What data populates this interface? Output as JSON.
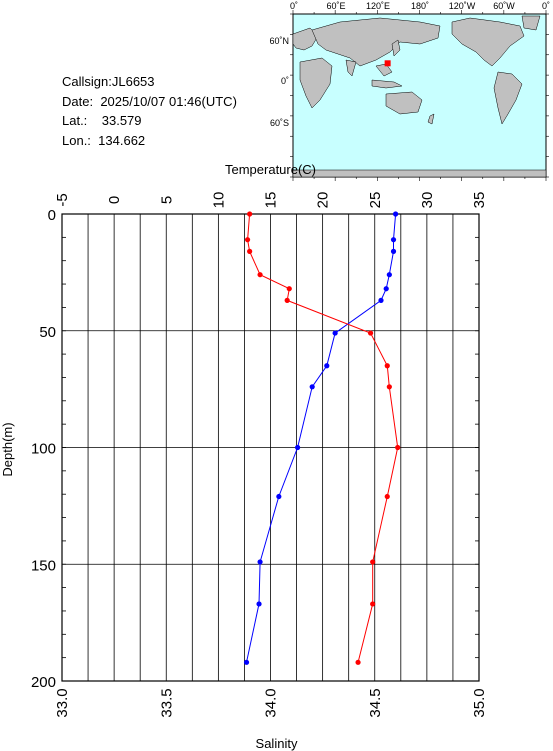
{
  "info": {
    "callsign_label": "Callsign:",
    "callsign": "JL6653",
    "date_label": "Date:",
    "date": "2025/10/07 01:46(UTC)",
    "lat_label": "Lat.:",
    "lat": "33.579",
    "lon_label": "Lon.:",
    "lon": "134.662"
  },
  "map": {
    "lon_labels": [
      "0˚",
      "60˚E",
      "120˚E",
      "180˚",
      "120˚W",
      "60˚W",
      "0˚"
    ],
    "lat_labels": [
      "60˚N",
      "0˚",
      "60˚S"
    ],
    "ocean_color": "#c8ffff",
    "land_color": "#c0c0c0",
    "marker_color": "#ff0000",
    "marker": {
      "lon": 134.662,
      "lat": 33.579
    }
  },
  "chart_data": {
    "type": "line",
    "y_axis": {
      "label": "Depth(m)",
      "range": [
        0,
        200
      ],
      "ticks": [
        0,
        50,
        100,
        150,
        200
      ],
      "inverted": true
    },
    "x_axis_top": {
      "label": "Temperature(C)",
      "range": [
        -5,
        35
      ],
      "ticks": [
        -5,
        0,
        5,
        10,
        15,
        20,
        25,
        30,
        35
      ]
    },
    "x_axis_bottom": {
      "label": "Salinity",
      "range": [
        33.0,
        35.0
      ],
      "ticks": [
        "33.0",
        "33.5",
        "34.0",
        "34.5",
        "35.0"
      ]
    },
    "grid": true,
    "series": [
      {
        "quantity": "temperature",
        "axis": "top",
        "color": "#0000ff",
        "points": [
          [
            27.0,
            0
          ],
          [
            26.8,
            11
          ],
          [
            26.8,
            16
          ],
          [
            26.4,
            26
          ],
          [
            26.1,
            32
          ],
          [
            25.6,
            37
          ],
          [
            21.2,
            51
          ],
          [
            20.4,
            65
          ],
          [
            19.0,
            74
          ],
          [
            17.6,
            100
          ],
          [
            15.8,
            121
          ],
          [
            14.0,
            149
          ],
          [
            13.9,
            167
          ],
          [
            12.7,
            192
          ]
        ]
      },
      {
        "quantity": "salinity",
        "axis": "bottom",
        "color": "#ff0000",
        "points": [
          [
            33.9,
            0
          ],
          [
            33.89,
            11
          ],
          [
            33.9,
            16
          ],
          [
            33.95,
            26
          ],
          [
            34.09,
            32
          ],
          [
            34.08,
            37
          ],
          [
            34.48,
            51
          ],
          [
            34.56,
            65
          ],
          [
            34.57,
            74
          ],
          [
            34.61,
            100
          ],
          [
            34.56,
            121
          ],
          [
            34.49,
            149
          ],
          [
            34.49,
            167
          ],
          [
            34.42,
            192
          ]
        ]
      }
    ]
  }
}
